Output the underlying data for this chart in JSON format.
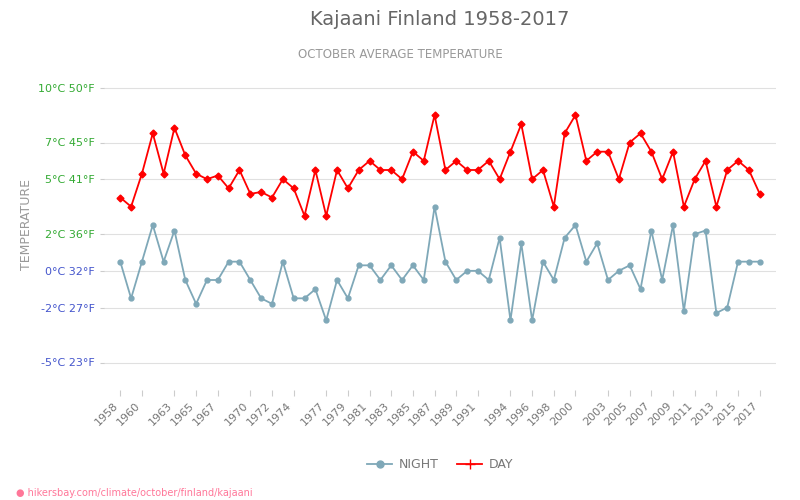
{
  "title": "Kajaani Finland 1958-2017",
  "subtitle": "OCTOBER AVERAGE TEMPERATURE",
  "ylabel": "TEMPERATURE",
  "footer": "hikersbay.com/climate/october/finland/kajaani",
  "years": [
    1958,
    1959,
    1960,
    1961,
    1962,
    1963,
    1964,
    1965,
    1966,
    1967,
    1968,
    1969,
    1970,
    1971,
    1972,
    1973,
    1974,
    1975,
    1976,
    1977,
    1978,
    1979,
    1980,
    1981,
    1982,
    1983,
    1984,
    1985,
    1986,
    1987,
    1988,
    1989,
    1990,
    1991,
    1992,
    1993,
    1994,
    1995,
    1996,
    1997,
    1998,
    1999,
    2000,
    2001,
    2002,
    2003,
    2004,
    2005,
    2006,
    2007,
    2008,
    2009,
    2010,
    2011,
    2012,
    2013,
    2014,
    2015,
    2016,
    2017
  ],
  "day_temps": [
    4.0,
    3.5,
    5.3,
    7.5,
    5.3,
    7.8,
    6.3,
    5.3,
    5.0,
    5.2,
    4.5,
    5.5,
    4.2,
    4.3,
    4.0,
    5.0,
    4.5,
    3.0,
    5.5,
    3.0,
    5.5,
    4.5,
    5.5,
    6.0,
    5.5,
    5.5,
    5.0,
    6.5,
    6.0,
    8.5,
    5.5,
    6.0,
    5.5,
    5.5,
    6.0,
    5.0,
    6.5,
    8.0,
    5.0,
    5.5,
    3.5,
    7.5,
    8.5,
    6.0,
    6.5,
    6.5,
    5.0,
    7.0,
    7.5,
    6.5,
    5.0,
    6.5,
    3.5,
    5.0,
    6.0,
    3.5,
    5.5,
    6.0,
    5.5,
    4.2
  ],
  "night_temps": [
    0.5,
    -1.5,
    0.5,
    2.5,
    0.5,
    2.2,
    -0.5,
    -1.8,
    -0.5,
    -0.5,
    0.5,
    0.5,
    -0.5,
    -1.5,
    -1.8,
    0.5,
    -1.5,
    -1.5,
    -1.0,
    -2.7,
    -0.5,
    -1.5,
    0.3,
    0.3,
    -0.5,
    0.3,
    -0.5,
    0.3,
    -0.5,
    3.5,
    0.5,
    -0.5,
    0.0,
    0.0,
    -0.5,
    1.8,
    -2.7,
    1.5,
    -2.7,
    0.5,
    -0.5,
    1.8,
    2.5,
    0.5,
    1.5,
    -0.5,
    0.0,
    0.3,
    -1.0,
    2.2,
    -0.5,
    2.5,
    -2.2,
    2.0,
    2.2,
    -2.3,
    -2.0,
    0.5,
    0.5,
    0.5
  ],
  "day_color": "#ff0000",
  "night_color": "#7fa8b8",
  "day_marker": "D",
  "night_marker": "o",
  "marker_size": 3.5,
  "title_color": "#666666",
  "subtitle_color": "#999999",
  "ylabel_color": "#999999",
  "left_label_color_green": "#33aa33",
  "left_label_color_blue": "#4455cc",
  "background_color": "#ffffff",
  "grid_color": "#e0e0e0",
  "ylim_min": -6.5,
  "ylim_max": 11.5,
  "yticks_c": [
    -5,
    -2,
    0,
    2,
    5,
    7,
    10
  ],
  "yticks_f": [
    23,
    27,
    32,
    36,
    41,
    45,
    50
  ],
  "xtick_years": [
    1958,
    1960,
    1963,
    1965,
    1967,
    1970,
    1972,
    1974,
    1977,
    1979,
    1981,
    1983,
    1985,
    1987,
    1989,
    1991,
    1994,
    1996,
    1998,
    2000,
    2003,
    2005,
    2007,
    2009,
    2011,
    2013,
    2015,
    2017
  ],
  "xtick_labels": [
    "1958",
    "1960",
    "1963",
    "1965",
    "1967",
    "1970",
    "1972",
    "1974",
    "1977",
    "1979",
    "1981",
    "1983",
    "1985",
    "1987",
    "1989",
    "1991",
    "1994",
    "1996",
    "1998",
    "2000",
    "2003",
    "2005",
    "2007",
    "2009",
    "2011",
    "2013",
    "2015",
    "2017"
  ]
}
